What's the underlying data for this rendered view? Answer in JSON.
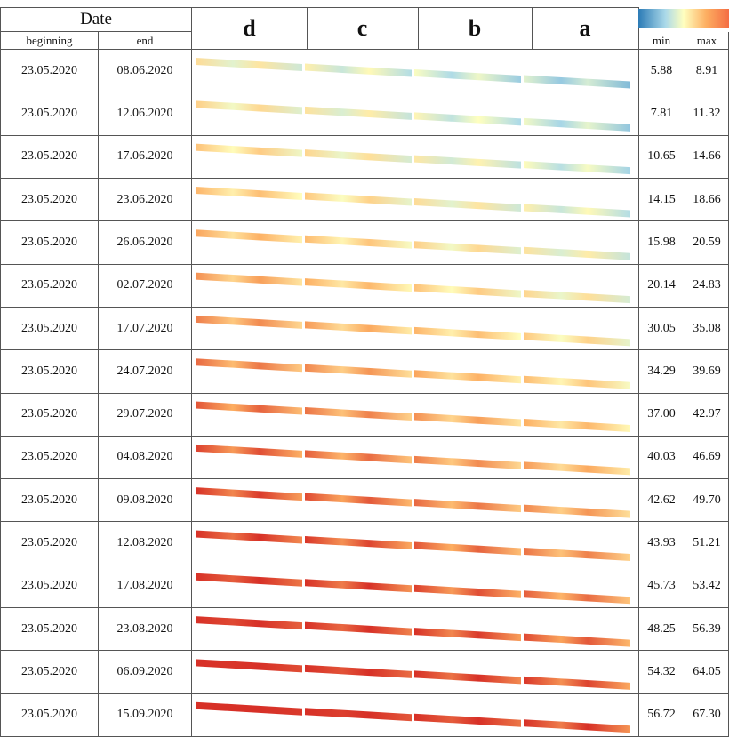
{
  "header": {
    "date": "Date",
    "beginning": "beginning",
    "end": "end",
    "panels": [
      "d",
      "c",
      "b",
      "a"
    ],
    "min": "min",
    "max": "max"
  },
  "rows": [
    [
      "23.05.2020",
      "08.06.2020",
      "5.88",
      "8.91"
    ],
    [
      "23.05.2020",
      "12.06.2020",
      "7.81",
      "11.32"
    ],
    [
      "23.05.2020",
      "17.06.2020",
      "10.65",
      "14.66"
    ],
    [
      "23.05.2020",
      "23.06.2020",
      "14.15",
      "18.66"
    ],
    [
      "23.05.2020",
      "26.06.2020",
      "15.98",
      "20.59"
    ],
    [
      "23.05.2020",
      "02.07.2020",
      "20.14",
      "24.83"
    ],
    [
      "23.05.2020",
      "17.07.2020",
      "30.05",
      "35.08"
    ],
    [
      "23.05.2020",
      "24.07.2020",
      "34.29",
      "39.69"
    ],
    [
      "23.05.2020",
      "29.07.2020",
      "37.00",
      "42.97"
    ],
    [
      "23.05.2020",
      "04.08.2020",
      "40.03",
      "46.69"
    ],
    [
      "23.05.2020",
      "09.08.2020",
      "42.62",
      "49.70"
    ],
    [
      "23.05.2020",
      "12.08.2020",
      "43.93",
      "51.21"
    ],
    [
      "23.05.2020",
      "17.08.2020",
      "45.73",
      "53.42"
    ],
    [
      "23.05.2020",
      "23.08.2020",
      "48.25",
      "56.39"
    ],
    [
      "23.05.2020",
      "06.09.2020",
      "54.32",
      "64.05"
    ],
    [
      "23.05.2020",
      "15.09.2020",
      "56.72",
      "67.30"
    ]
  ]
}
